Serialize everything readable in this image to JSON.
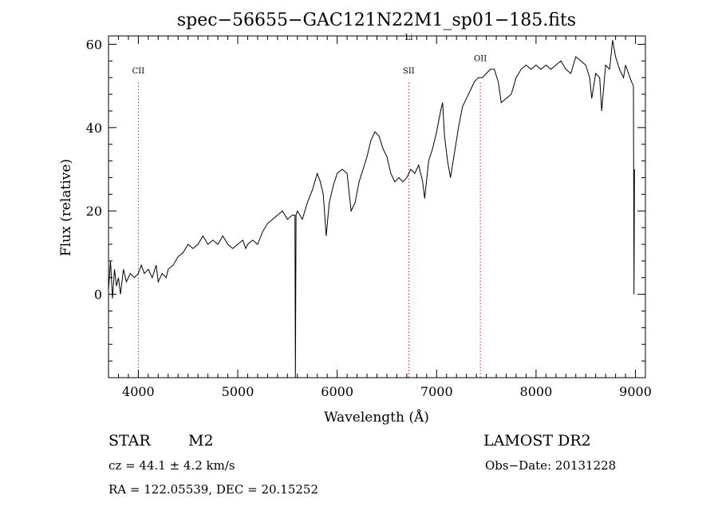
{
  "chart_data": {
    "type": "line",
    "title": "spec−56655−GAC121N22M1_sp01−185.fits",
    "xlabel": "Wavelength (Å)",
    "ylabel": "Flux (relative)",
    "xlim": [
      3700,
      9100
    ],
    "ylim": [
      -20,
      62
    ],
    "x_ticks": [
      4000,
      5000,
      6000,
      7000,
      8000,
      9000
    ],
    "y_ticks": [
      0,
      20,
      40,
      60
    ],
    "x_tick_labels": [
      "4000",
      "5000",
      "6000",
      "7000",
      "8000",
      "9000"
    ],
    "y_tick_labels": [
      "0",
      "20",
      "40",
      "60"
    ],
    "grid": false,
    "spectral_lines": [
      {
        "label": "CII",
        "wavelength": 4000,
        "label_flux": 53
      },
      {
        "label": "SII",
        "wavelength": 6720,
        "label_flux": 53
      },
      {
        "label": "Li",
        "wavelength": 6720,
        "label_flux": 61
      },
      {
        "label": "OII",
        "wavelength": 7440,
        "label_flux": 56
      }
    ],
    "series": [
      {
        "values": [
          [
            3700,
            1
          ],
          [
            3720,
            8
          ],
          [
            3740,
            -1
          ],
          [
            3760,
            6
          ],
          [
            3780,
            2
          ],
          [
            3800,
            4
          ],
          [
            3820,
            0
          ],
          [
            3850,
            6
          ],
          [
            3880,
            3
          ],
          [
            3920,
            5
          ],
          [
            3960,
            4
          ],
          [
            4000,
            5
          ],
          [
            4030,
            7
          ],
          [
            4060,
            5
          ],
          [
            4100,
            6
          ],
          [
            4140,
            4
          ],
          [
            4180,
            7
          ],
          [
            4200,
            3
          ],
          [
            4240,
            5
          ],
          [
            4280,
            4
          ],
          [
            4300,
            6
          ],
          [
            4350,
            7
          ],
          [
            4400,
            9
          ],
          [
            4450,
            10
          ],
          [
            4500,
            12
          ],
          [
            4550,
            11
          ],
          [
            4600,
            12
          ],
          [
            4650,
            14
          ],
          [
            4700,
            12
          ],
          [
            4750,
            13
          ],
          [
            4800,
            12
          ],
          [
            4850,
            14
          ],
          [
            4900,
            12
          ],
          [
            4950,
            11
          ],
          [
            5000,
            12
          ],
          [
            5050,
            13
          ],
          [
            5080,
            11
          ],
          [
            5100,
            12
          ],
          [
            5150,
            13
          ],
          [
            5200,
            12
          ],
          [
            5250,
            15
          ],
          [
            5300,
            17
          ],
          [
            5350,
            18
          ],
          [
            5400,
            19
          ],
          [
            5450,
            20
          ],
          [
            5500,
            18
          ],
          [
            5550,
            19
          ],
          [
            5575,
            19
          ],
          [
            5580,
            -20
          ],
          [
            5586,
            19
          ],
          [
            5600,
            20
          ],
          [
            5650,
            18
          ],
          [
            5700,
            22
          ],
          [
            5750,
            25
          ],
          [
            5800,
            29
          ],
          [
            5830,
            27
          ],
          [
            5860,
            24
          ],
          [
            5890,
            14
          ],
          [
            5920,
            22
          ],
          [
            5960,
            26
          ],
          [
            6000,
            29
          ],
          [
            6050,
            30
          ],
          [
            6100,
            29
          ],
          [
            6140,
            20
          ],
          [
            6180,
            22
          ],
          [
            6220,
            27
          ],
          [
            6260,
            30
          ],
          [
            6300,
            33
          ],
          [
            6340,
            37
          ],
          [
            6380,
            39
          ],
          [
            6420,
            38
          ],
          [
            6460,
            35
          ],
          [
            6500,
            33
          ],
          [
            6540,
            29
          ],
          [
            6580,
            27
          ],
          [
            6620,
            28
          ],
          [
            6660,
            27
          ],
          [
            6700,
            28
          ],
          [
            6740,
            30
          ],
          [
            6780,
            29
          ],
          [
            6820,
            31
          ],
          [
            6860,
            27
          ],
          [
            6880,
            23
          ],
          [
            6920,
            32
          ],
          [
            6960,
            35
          ],
          [
            7000,
            39
          ],
          [
            7040,
            44
          ],
          [
            7060,
            46
          ],
          [
            7080,
            38
          ],
          [
            7110,
            32
          ],
          [
            7140,
            28
          ],
          [
            7180,
            34
          ],
          [
            7220,
            40
          ],
          [
            7260,
            45
          ],
          [
            7300,
            47
          ],
          [
            7340,
            49
          ],
          [
            7380,
            51
          ],
          [
            7420,
            52
          ],
          [
            7460,
            52
          ],
          [
            7500,
            53
          ],
          [
            7540,
            54
          ],
          [
            7580,
            54
          ],
          [
            7620,
            51
          ],
          [
            7650,
            46
          ],
          [
            7700,
            47
          ],
          [
            7750,
            48
          ],
          [
            7800,
            52
          ],
          [
            7850,
            54
          ],
          [
            7900,
            55
          ],
          [
            7950,
            54
          ],
          [
            8000,
            55
          ],
          [
            8050,
            54
          ],
          [
            8100,
            55
          ],
          [
            8150,
            54
          ],
          [
            8200,
            55
          ],
          [
            8250,
            56
          ],
          [
            8300,
            54
          ],
          [
            8350,
            53
          ],
          [
            8400,
            57
          ],
          [
            8450,
            56
          ],
          [
            8500,
            55
          ],
          [
            8540,
            52
          ],
          [
            8560,
            47
          ],
          [
            8600,
            53
          ],
          [
            8640,
            52
          ],
          [
            8660,
            44
          ],
          [
            8700,
            55
          ],
          [
            8740,
            54
          ],
          [
            8770,
            61
          ],
          [
            8800,
            57
          ],
          [
            8840,
            54
          ],
          [
            8880,
            52
          ],
          [
            8900,
            55
          ],
          [
            8930,
            53
          ],
          [
            8960,
            51
          ],
          [
            8980,
            50
          ],
          [
            8985,
            0
          ],
          [
            8990,
            30
          ]
        ]
      }
    ]
  },
  "info": {
    "object_type": "STAR",
    "subclass": "M2",
    "survey": "LAMOST DR2",
    "cz": "cz = 44.1 ± 4.2 km/s",
    "obs_date": "Obs−Date: 20131228",
    "coords": "RA = 122.05539, DEC =  20.15252"
  },
  "colors": {
    "spectrum": "#000000",
    "line_markers": "#dd2222",
    "background": "#ffffff"
  }
}
